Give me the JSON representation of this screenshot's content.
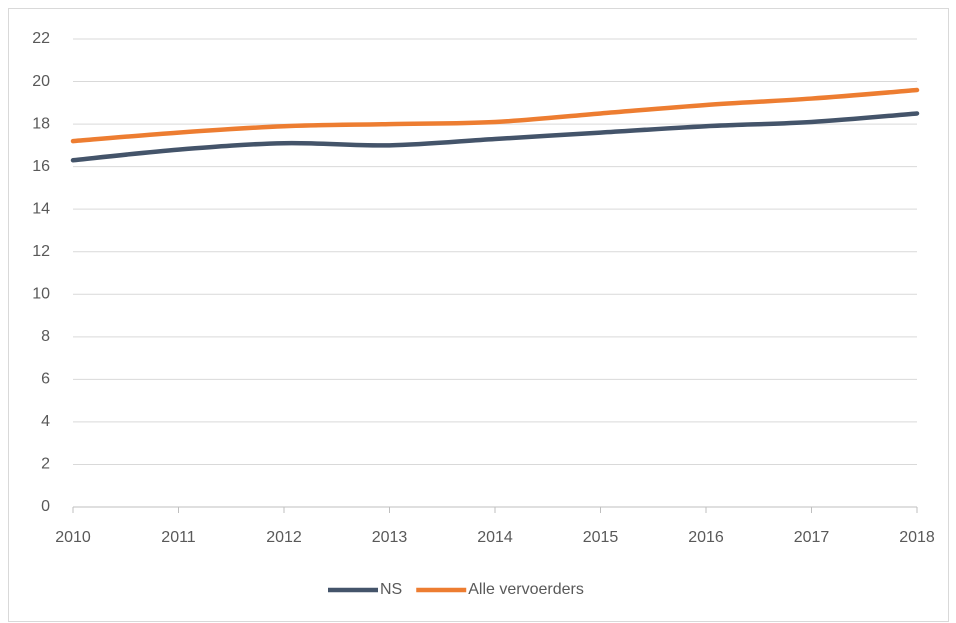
{
  "chart_data": {
    "type": "line",
    "x": [
      2010,
      2011,
      2012,
      2013,
      2014,
      2015,
      2016,
      2017,
      2018
    ],
    "series": [
      {
        "name": "NS",
        "color": "#44546a",
        "values": [
          16.3,
          16.8,
          17.1,
          17.0,
          17.3,
          17.6,
          17.9,
          18.1,
          18.5
        ]
      },
      {
        "name": "Alle vervoerders",
        "color": "#ed7d31",
        "values": [
          17.2,
          17.6,
          17.9,
          18.0,
          18.1,
          18.5,
          18.9,
          19.2,
          19.6
        ]
      }
    ],
    "xlim": [
      2010,
      2018
    ],
    "xticks": [
      2010,
      2011,
      2012,
      2013,
      2014,
      2015,
      2016,
      2017,
      2018
    ],
    "ylim": [
      0,
      22
    ],
    "yticks": [
      0,
      2,
      4,
      6,
      8,
      10,
      12,
      14,
      16,
      18,
      20,
      22
    ],
    "grid": true,
    "legend": "bottom"
  }
}
